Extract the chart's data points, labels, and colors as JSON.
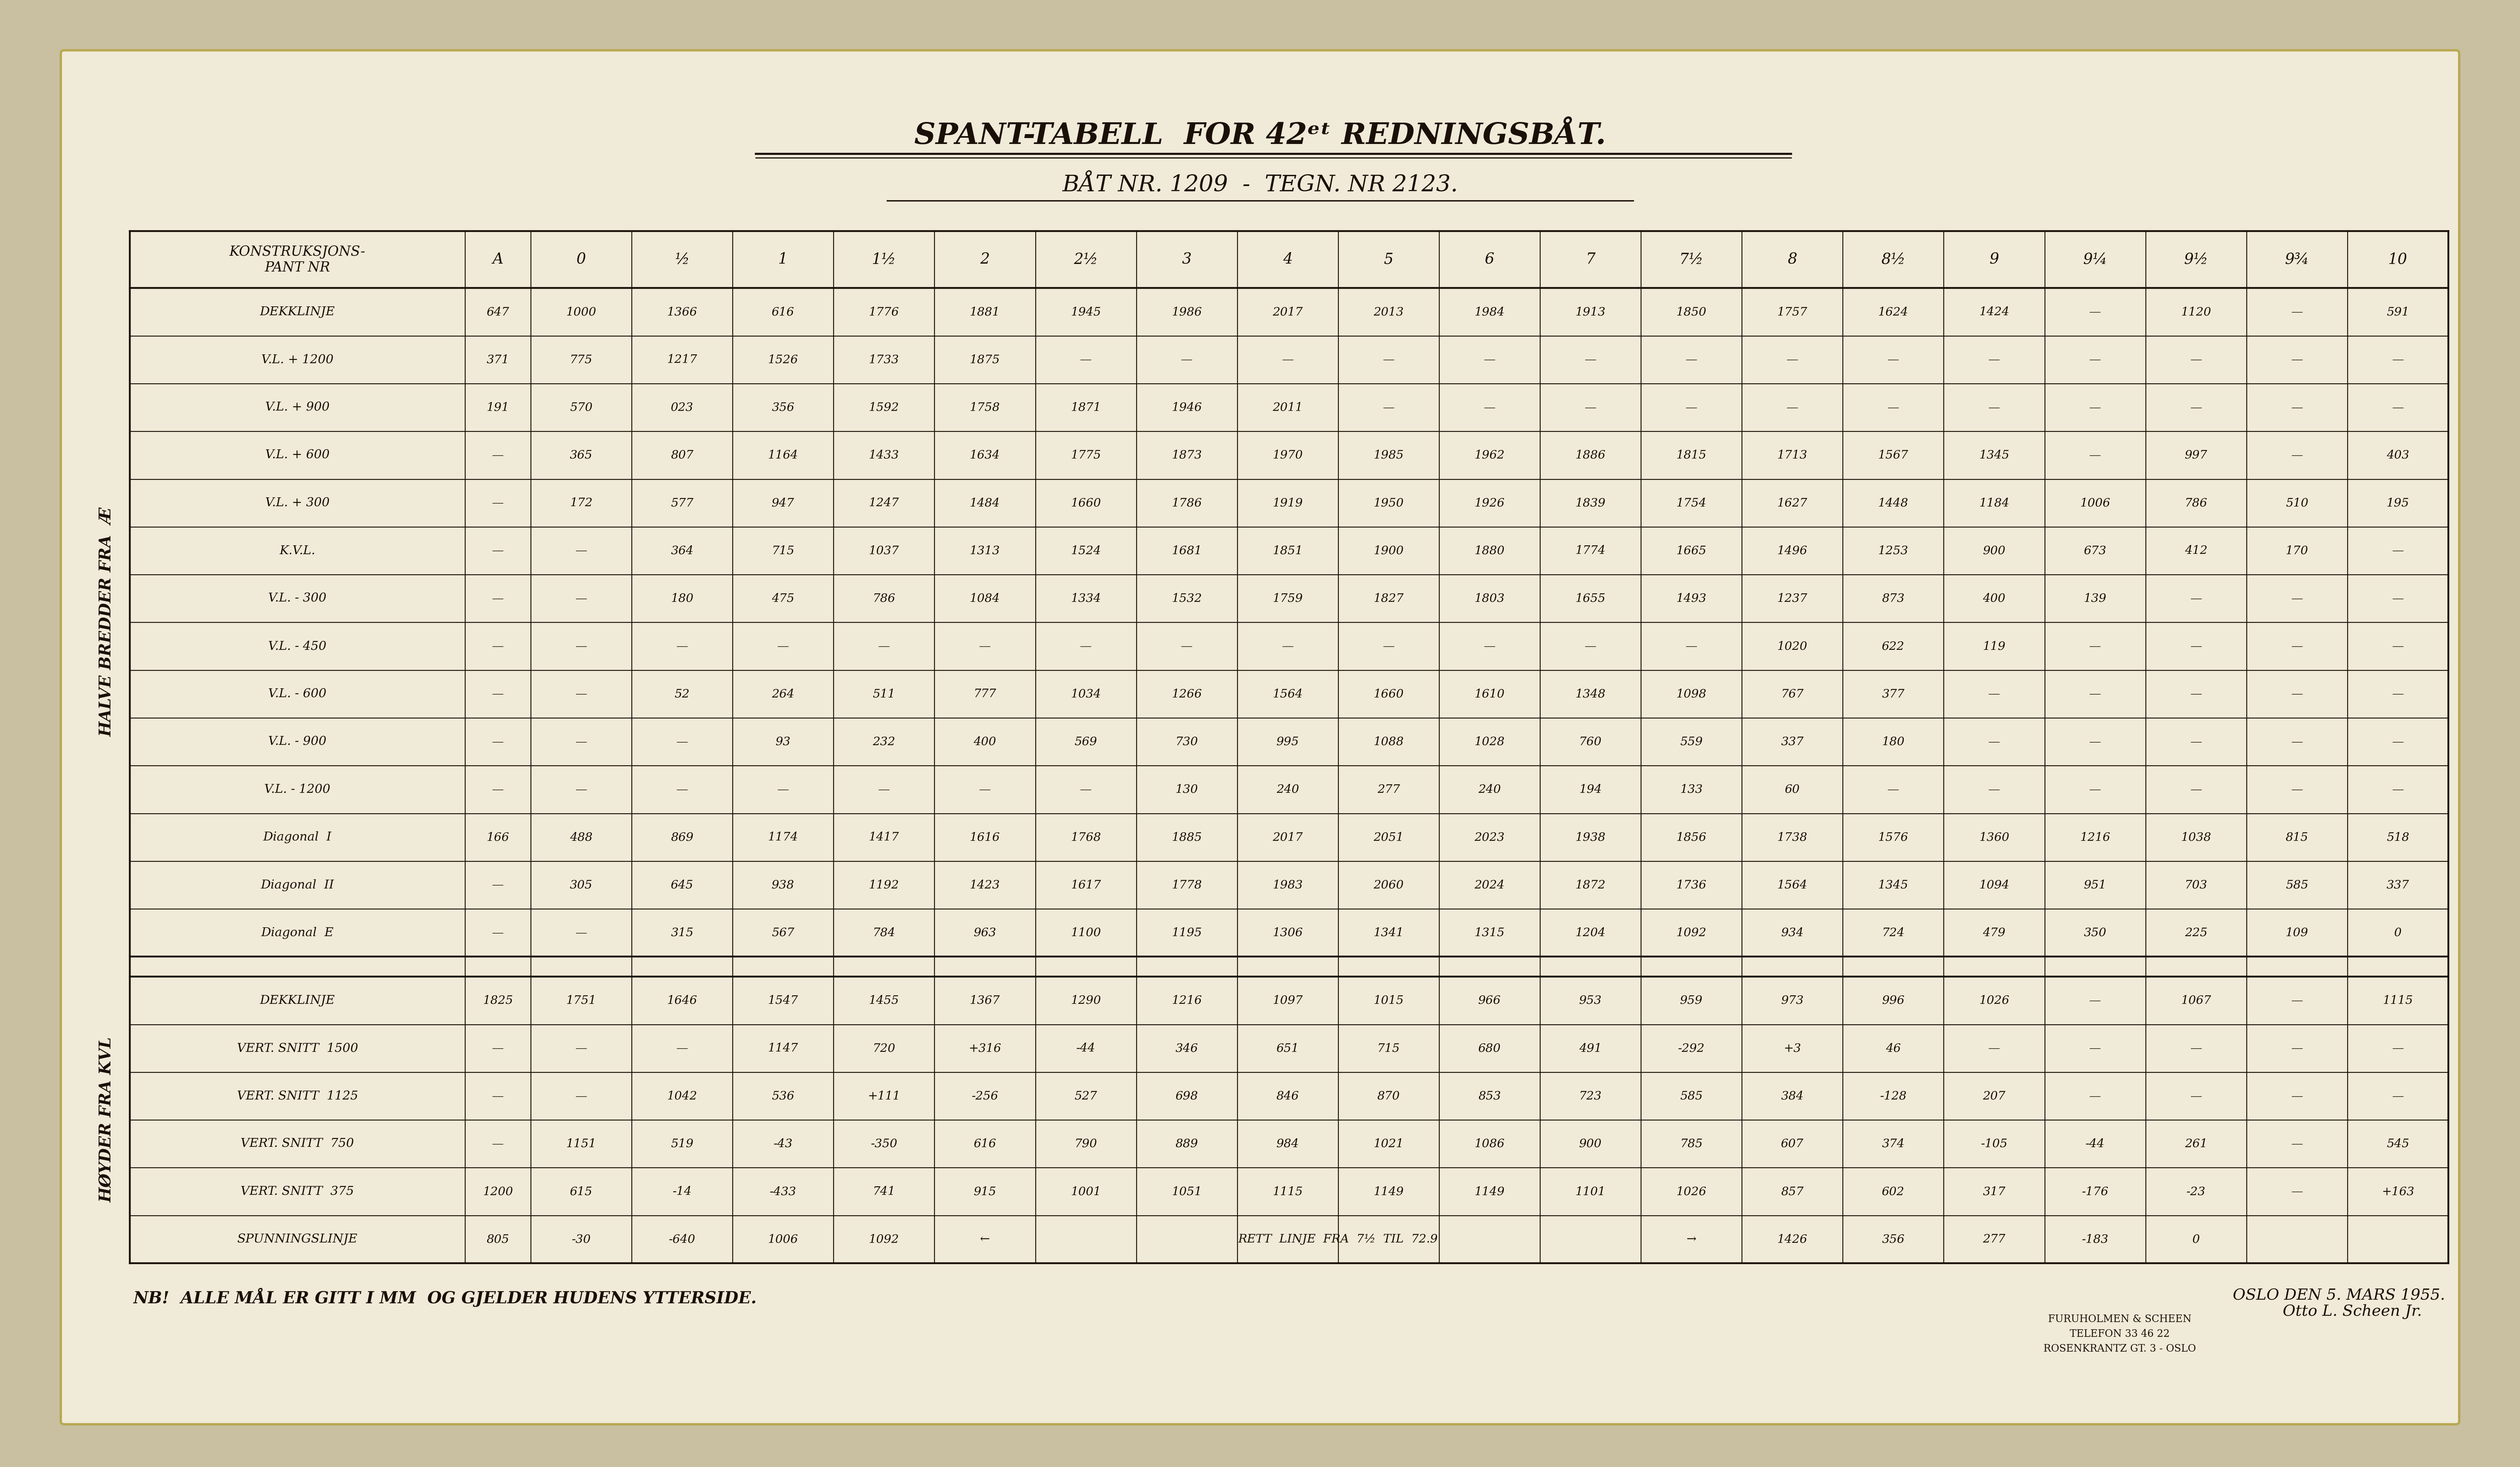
{
  "outer_bg": "#c8c0a0",
  "paper_bg": "#f0ead8",
  "text_color": "#1a1008",
  "title1": "SPANT-TABELL  FOR 42ᵉᵗ REDNINGSBÅT.",
  "title2": "BÅT NR. 1209  -  TEGN. NR 2123.",
  "section1_label": "HALVE BREDDER FRA  Æ",
  "section2_label": "HØYDER FRA KVL",
  "col_headers_display": [
    "KONSTRUKSJONS-\nPANT NR",
    "A",
    "0",
    "½",
    "1",
    "1½",
    "2",
    "2½",
    "3",
    "4",
    "5",
    "6",
    "7",
    "7½",
    "8",
    "8½",
    "9",
    "9¼",
    "9½",
    "9¾",
    "10"
  ],
  "rows_section1": [
    [
      "DEKKLINJE",
      "647",
      "1000",
      "1366",
      "616",
      "1776",
      "1881",
      "1945",
      "1986",
      "2017",
      "2013",
      "1984",
      "1913",
      "1850",
      "1757",
      "1624",
      "1424",
      "—",
      "1120",
      "—",
      "591"
    ],
    [
      "V.L. + 1200",
      "371",
      "775",
      "1217",
      "1526",
      "1733",
      "1875",
      "—",
      "—",
      "—",
      "—",
      "—",
      "—",
      "—",
      "—",
      "—",
      "—",
      "—",
      "—",
      "—",
      "—"
    ],
    [
      "V.L. + 900",
      "191",
      "570",
      "023",
      "356",
      "1592",
      "1758",
      "1871",
      "1946",
      "2011",
      "—",
      "—",
      "—",
      "—",
      "—",
      "—",
      "—",
      "—",
      "—",
      "—",
      "—"
    ],
    [
      "V.L. + 600",
      "—",
      "365",
      "807",
      "1164",
      "1433",
      "1634",
      "1775",
      "1873",
      "1970",
      "1985",
      "1962",
      "1886",
      "1815",
      "1713",
      "1567",
      "1345",
      "—",
      "997",
      "—",
      "403"
    ],
    [
      "V.L. + 300",
      "—",
      "172",
      "577",
      "947",
      "1247",
      "1484",
      "1660",
      "1786",
      "1919",
      "1950",
      "1926",
      "1839",
      "1754",
      "1627",
      "1448",
      "1184",
      "1006",
      "786",
      "510",
      "195"
    ],
    [
      "K.V.L.",
      "—",
      "—",
      "364",
      "715",
      "1037",
      "1313",
      "1524",
      "1681",
      "1851",
      "1900",
      "1880",
      "1774",
      "1665",
      "1496",
      "1253",
      "900",
      "673",
      "412",
      "170",
      "—"
    ],
    [
      "V.L. - 300",
      "—",
      "—",
      "180",
      "475",
      "786",
      "1084",
      "1334",
      "1532",
      "1759",
      "1827",
      "1803",
      "1655",
      "1493",
      "1237",
      "873",
      "400",
      "139",
      "—",
      "—",
      "—"
    ],
    [
      "V.L. - 450",
      "—",
      "—",
      "—",
      "—",
      "—",
      "—",
      "—",
      "—",
      "—",
      "—",
      "—",
      "—",
      "—",
      "1020",
      "622",
      "119",
      "—",
      "—",
      "—",
      "—"
    ],
    [
      "V.L. - 600",
      "—",
      "—",
      "52",
      "264",
      "511",
      "777",
      "1034",
      "1266",
      "1564",
      "1660",
      "1610",
      "1348",
      "1098",
      "767",
      "377",
      "—",
      "—",
      "—",
      "—",
      "—"
    ],
    [
      "V.L. - 900",
      "—",
      "—",
      "—",
      "93",
      "232",
      "400",
      "569",
      "730",
      "995",
      "1088",
      "1028",
      "760",
      "559",
      "337",
      "180",
      "—",
      "—",
      "—",
      "—",
      "—"
    ],
    [
      "V.L. - 1200",
      "—",
      "—",
      "—",
      "—",
      "—",
      "—",
      "—",
      "130",
      "240",
      "277",
      "240",
      "194",
      "133",
      "60",
      "—",
      "—",
      "—",
      "—",
      "—",
      "—"
    ],
    [
      "Diagonal  I",
      "166",
      "488",
      "869",
      "1174",
      "1417",
      "1616",
      "1768",
      "1885",
      "2017",
      "2051",
      "2023",
      "1938",
      "1856",
      "1738",
      "1576",
      "1360",
      "1216",
      "1038",
      "815",
      "518"
    ],
    [
      "Diagonal  II",
      "—",
      "305",
      "645",
      "938",
      "1192",
      "1423",
      "1617",
      "1778",
      "1983",
      "2060",
      "2024",
      "1872",
      "1736",
      "1564",
      "1345",
      "1094",
      "951",
      "703",
      "585",
      "337"
    ],
    [
      "Diagonal  E",
      "—",
      "—",
      "315",
      "567",
      "784",
      "963",
      "1100",
      "1195",
      "1306",
      "1341",
      "1315",
      "1204",
      "1092",
      "934",
      "724",
      "479",
      "350",
      "225",
      "109",
      "0"
    ]
  ],
  "rows_section2": [
    [
      "DEKKLINJE",
      "1825",
      "1751",
      "1646",
      "1547",
      "1455",
      "1367",
      "1290",
      "1216",
      "1097",
      "1015",
      "966",
      "953",
      "959",
      "973",
      "996",
      "1026",
      "—",
      "1067",
      "—",
      "1115"
    ],
    [
      "VERT. SNITT  1500",
      "—",
      "—",
      "—",
      "1147",
      "720",
      "+316",
      "-44",
      "346",
      "651",
      "715",
      "680",
      "491",
      "-292",
      "+3",
      "46",
      "—",
      "—",
      "—",
      "—",
      "—"
    ],
    [
      "VERT. SNITT  1125",
      "—",
      "—",
      "1042",
      "536",
      "+111",
      "-256",
      "527",
      "698",
      "846",
      "870",
      "853",
      "723",
      "585",
      "384",
      "-128",
      "207",
      "—",
      "—",
      "—",
      "—"
    ],
    [
      "VERT. SNITT  750",
      "—",
      "1151",
      "519",
      "-43",
      "-350",
      "616",
      "790",
      "889",
      "984",
      "1021",
      "1086",
      "900",
      "785",
      "607",
      "374",
      "-105",
      "-44",
      "261",
      "—",
      "545"
    ],
    [
      "VERT. SNITT  375",
      "1200",
      "615",
      "-14",
      "-433",
      "741",
      "915",
      "1001",
      "1051",
      "1115",
      "1149",
      "1149",
      "1101",
      "1026",
      "857",
      "602",
      "317",
      "-176",
      "-23",
      "—",
      "+163"
    ],
    [
      "SPUNNINGSLINJE",
      "805",
      "-30",
      "-640",
      "1006",
      "1092",
      "←",
      "",
      "RETT  LINJE  FRA  7½  TIL  72.9",
      "",
      "",
      "",
      "",
      "",
      "→",
      "1426",
      "356",
      "277",
      "-183",
      "0",
      ""
    ]
  ],
  "footnote": "NB!  ALLE MÅL ER GITT I MM  OG GJELDER HUDENS YTTERSIDE.",
  "date_text": "OSLO DEN 5. MARS 1955.",
  "company_name": "FURUHOLMEN & SCHEEN",
  "company_phone": "TELEFON 33 46 22",
  "company_addr": "ROSENKRANTZ GT. 3 - OSLO",
  "signature": "Otto L. Scheen Jr."
}
